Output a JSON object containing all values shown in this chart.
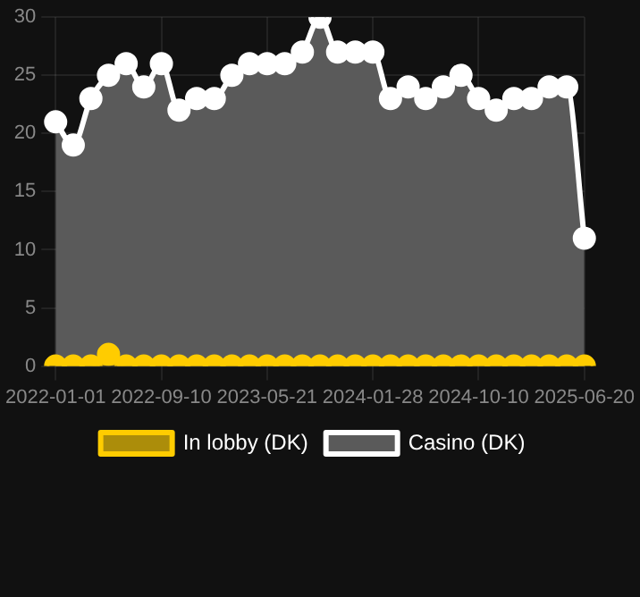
{
  "chart_data": {
    "type": "area",
    "categories": [
      "2022-01-01",
      null,
      null,
      null,
      null,
      null,
      "2022-09-10",
      null,
      null,
      null,
      null,
      null,
      "2023-05-21",
      null,
      null,
      null,
      null,
      null,
      "2024-01-28",
      null,
      null,
      null,
      null,
      null,
      "2024-10-10",
      null,
      null,
      null,
      null,
      null,
      "2025-06-20"
    ],
    "series": [
      {
        "name": "In lobby (DK)",
        "color": "#ffcc00",
        "values": [
          0,
          0,
          0,
          1,
          0,
          0,
          0,
          0,
          0,
          0,
          0,
          0,
          0,
          0,
          0,
          0,
          0,
          0,
          0,
          0,
          0,
          0,
          0,
          0,
          0,
          0,
          0,
          0,
          0,
          0,
          0
        ]
      },
      {
        "name": "Casino (DK)",
        "color": "#ffffff",
        "values": [
          21,
          19,
          23,
          25,
          26,
          24,
          26,
          22,
          23,
          23,
          25,
          26,
          26,
          26,
          27,
          30,
          27,
          27,
          27,
          23,
          24,
          23,
          24,
          25,
          23,
          22,
          23,
          23,
          24,
          24,
          11
        ]
      }
    ],
    "ylim": [
      0,
      30
    ],
    "yticks": [
      0,
      5,
      10,
      15,
      20,
      25,
      30
    ],
    "grid": true,
    "legend": "bottom",
    "marker": "circle",
    "line_style": "solid"
  }
}
